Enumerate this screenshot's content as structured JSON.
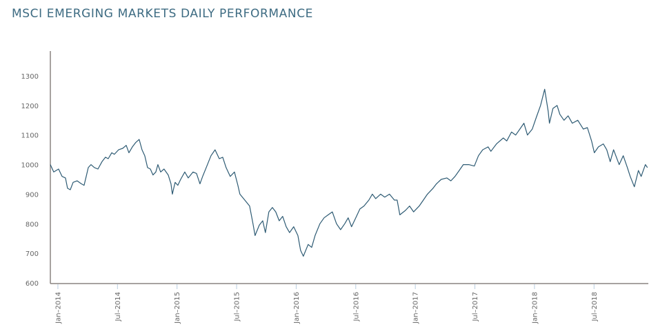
{
  "chart_data": {
    "type": "line",
    "title": "MSCI EMERGING MARKETS DAILY PERFORMANCE",
    "xlabel": "",
    "ylabel": "",
    "x_unit": "months since Jan-2014",
    "ylim": [
      590,
      1385
    ],
    "xlim": [
      -0.76,
      59.4
    ],
    "yticks": [
      600,
      700,
      800,
      900,
      1000,
      1100,
      1200,
      1300
    ],
    "xticks": [
      {
        "m": 0,
        "label": "Jan–2014"
      },
      {
        "m": 6,
        "label": "Jul–2014"
      },
      {
        "m": 12,
        "label": "Jan–2015"
      },
      {
        "m": 18,
        "label": "Jul–2015"
      },
      {
        "m": 24,
        "label": "Jan–2016"
      },
      {
        "m": 30,
        "label": "Jul–2016"
      },
      {
        "m": 36,
        "label": "Jan–2017"
      },
      {
        "m": 42,
        "label": "Jul–2017"
      },
      {
        "m": 48,
        "label": "Jan–2018"
      },
      {
        "m": 54,
        "label": "Jul–2018"
      }
    ],
    "grid": false,
    "line_color": "#2d5a73",
    "series": [
      {
        "name": "MSCI Emerging Markets",
        "x": [
          -0.76,
          -0.42,
          0.07,
          0.42,
          0.76,
          0.97,
          1.25,
          1.53,
          1.94,
          2.36,
          2.64,
          2.85,
          3.06,
          3.33,
          3.68,
          4.03,
          4.44,
          4.79,
          5.07,
          5.42,
          5.69,
          6.11,
          6.53,
          6.88,
          7.15,
          7.5,
          7.85,
          8.19,
          8.47,
          8.75,
          9.03,
          9.31,
          9.58,
          9.86,
          10.07,
          10.35,
          10.69,
          11.11,
          11.39,
          11.53,
          11.81,
          12.08,
          12.36,
          12.78,
          13.13,
          13.61,
          13.96,
          14.31,
          14.58,
          15.0,
          15.42,
          15.83,
          16.25,
          16.6,
          16.94,
          17.36,
          17.78,
          18.13,
          18.33,
          18.82,
          19.31,
          19.65,
          19.86,
          20.28,
          20.63,
          20.9,
          21.25,
          21.6,
          21.94,
          22.29,
          22.64,
          22.99,
          23.33,
          23.75,
          24.17,
          24.44,
          24.72,
          25.21,
          25.56,
          25.9,
          26.39,
          26.81,
          27.22,
          27.64,
          28.06,
          28.47,
          28.89,
          29.24,
          29.58,
          30.0,
          30.42,
          30.83,
          31.32,
          31.67,
          32.01,
          32.5,
          32.92,
          33.4,
          33.89,
          34.17,
          34.44,
          35.0,
          35.42,
          35.83,
          36.39,
          36.81,
          37.22,
          37.78,
          38.13,
          38.61,
          39.17,
          39.58,
          40.0,
          40.42,
          40.83,
          41.39,
          41.94,
          42.36,
          42.78,
          43.33,
          43.61,
          44.17,
          44.86,
          45.21,
          45.69,
          46.11,
          46.53,
          46.94,
          47.29,
          47.78,
          48.19,
          48.61,
          49.03,
          49.38,
          49.51,
          49.86,
          50.28,
          50.56,
          50.97,
          51.39,
          51.81,
          52.36,
          52.92,
          53.33,
          53.75,
          54.03,
          54.44,
          54.93,
          55.28,
          55.63,
          55.97,
          56.53,
          56.94,
          57.36,
          57.64,
          58.06,
          58.47,
          58.75,
          59.17,
          59.38
        ],
        "values": [
          1000,
          975,
          985,
          960,
          955,
          920,
          915,
          940,
          945,
          935,
          930,
          960,
          990,
          1000,
          990,
          985,
          1010,
          1025,
          1020,
          1040,
          1035,
          1050,
          1055,
          1065,
          1040,
          1060,
          1075,
          1085,
          1050,
          1030,
          990,
          985,
          965,
          975,
          1000,
          975,
          985,
          965,
          935,
          900,
          940,
          930,
          950,
          975,
          955,
          975,
          970,
          935,
          960,
          995,
          1030,
          1050,
          1020,
          1025,
          990,
          960,
          975,
          930,
          900,
          880,
          860,
          800,
          760,
          795,
          810,
          770,
          840,
          855,
          840,
          810,
          825,
          790,
          770,
          790,
          760,
          710,
          690,
          730,
          720,
          760,
          800,
          820,
          830,
          840,
          800,
          780,
          800,
          820,
          790,
          820,
          850,
          860,
          880,
          900,
          885,
          900,
          890,
          900,
          880,
          880,
          830,
          845,
          860,
          840,
          860,
          880,
          900,
          920,
          935,
          950,
          955,
          945,
          960,
          980,
          1000,
          1000,
          995,
          1030,
          1050,
          1060,
          1045,
          1070,
          1090,
          1080,
          1110,
          1100,
          1120,
          1140,
          1100,
          1120,
          1160,
          1200,
          1255,
          1180,
          1140,
          1190,
          1200,
          1170,
          1150,
          1165,
          1140,
          1150,
          1120,
          1125,
          1080,
          1040,
          1060,
          1070,
          1050,
          1010,
          1050,
          1000,
          1030,
          990,
          960,
          925,
          980,
          960,
          1000,
          990
        ]
      }
    ]
  }
}
